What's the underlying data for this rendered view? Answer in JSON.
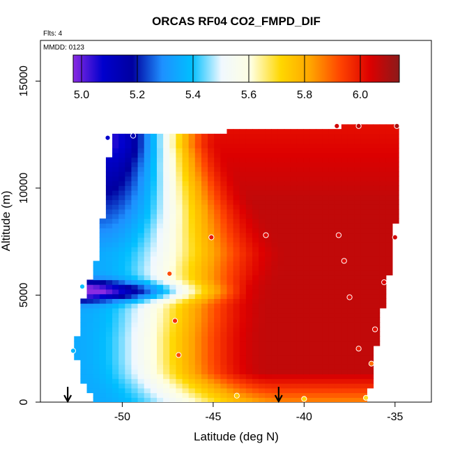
{
  "chart_data": {
    "type": "heatmap",
    "title": "ORCAS RF04 CO2_FMPD_DIF",
    "flights_label": "Flts: 4",
    "date_label": "MMDD: 0123",
    "xlabel": "Latitude (deg N)",
    "ylabel": "Altitude (m)",
    "xlim": [
      -54.5,
      -33.0
    ],
    "ylim": [
      0,
      16900
    ],
    "x_ticks": [
      -50,
      -45,
      -40,
      -35
    ],
    "x_tick_labels": [
      "-50",
      "-45",
      "-40",
      "-35"
    ],
    "y_ticks": [
      0,
      5000,
      10000,
      15000
    ],
    "y_tick_labels": [
      "0",
      "5000",
      "10000",
      "15000"
    ],
    "colorbar": {
      "min": 4.97,
      "max": 6.14,
      "ticks": [
        5.0,
        5.2,
        5.4,
        5.6,
        5.8,
        6.0
      ],
      "tick_labels": [
        "5.0",
        "5.2",
        "5.4",
        "5.6",
        "5.8",
        "6.0"
      ],
      "colors": [
        "#8A2BE2",
        "#0000CD",
        "#0000A0",
        "#1E90FF",
        "#00BFFF",
        "#F0F8FF",
        "#FFFFE0",
        "#FFD700",
        "#FFA500",
        "#FF4500",
        "#DD0000",
        "#8B1A1A"
      ]
    },
    "grid": false,
    "legend": "none",
    "field_description": "Interpolated CO2 difference field over latitude and altitude; low values (blue) in the southwest high-altitude region and a thin low layer near 5000-5500 m, high values (red) in the center to northeast between about 1000 m and 9000 m.",
    "field_edge_left": [
      [
        0,
        -51.4
      ],
      [
        600,
        -51.9
      ],
      [
        1200,
        -52.3
      ],
      [
        2000,
        -52.5
      ],
      [
        2500,
        -52.5
      ],
      [
        3000,
        -52.5
      ],
      [
        3500,
        -52.4
      ],
      [
        4000,
        -52.3
      ],
      [
        4500,
        -52.3
      ],
      [
        5000,
        -52.1
      ],
      [
        5500,
        -52.0
      ],
      [
        6000,
        -51.6
      ],
      [
        7000,
        -51.3
      ],
      [
        8000,
        -51.2
      ],
      [
        9000,
        -51.0
      ],
      [
        10000,
        -50.9
      ],
      [
        11000,
        -50.8
      ],
      [
        11900,
        -50.6
      ],
      [
        12500,
        -50.6
      ]
    ],
    "field_edge_right": [
      [
        0,
        -36.6
      ],
      [
        1000,
        -36.3
      ],
      [
        2000,
        -36.2
      ],
      [
        3000,
        -35.9
      ],
      [
        4000,
        -35.8
      ],
      [
        5000,
        -35.5
      ],
      [
        6000,
        -35.3
      ],
      [
        7000,
        -35.1
      ],
      [
        8000,
        -35.0
      ],
      [
        9000,
        -34.9
      ],
      [
        10000,
        -34.9
      ],
      [
        11000,
        -34.8
      ],
      [
        12000,
        -34.7
      ],
      [
        12900,
        -34.7
      ]
    ],
    "field_top": [
      [
        -50.6,
        12500
      ],
      [
        -48.0,
        12500
      ],
      [
        -45.5,
        12600
      ],
      [
        -43.0,
        12700
      ],
      [
        -40.0,
        12800
      ],
      [
        -37.0,
        12900
      ],
      [
        -34.7,
        12900
      ]
    ],
    "aircraft_samples": [
      {
        "lat": -50.8,
        "alt": 12350,
        "value": 5.08
      },
      {
        "lat": -49.4,
        "alt": 12450,
        "value": 5.14
      },
      {
        "lat": -38.2,
        "alt": 12900,
        "value": 6.05
      },
      {
        "lat": -37.0,
        "alt": 12900,
        "value": 6.08
      },
      {
        "lat": -34.9,
        "alt": 12900,
        "value": 6.1
      },
      {
        "lat": -45.1,
        "alt": 7700,
        "value": 6.0
      },
      {
        "lat": -42.1,
        "alt": 7800,
        "value": 6.02
      },
      {
        "lat": -38.1,
        "alt": 7800,
        "value": 6.03
      },
      {
        "lat": -35.0,
        "alt": 7700,
        "value": 6.05
      },
      {
        "lat": -37.8,
        "alt": 6600,
        "value": 6.02
      },
      {
        "lat": -47.4,
        "alt": 6000,
        "value": 5.92
      },
      {
        "lat": -35.6,
        "alt": 5600,
        "value": 6.03
      },
      {
        "lat": -52.2,
        "alt": 5400,
        "value": 5.4
      },
      {
        "lat": -37.5,
        "alt": 4900,
        "value": 6.02
      },
      {
        "lat": -47.1,
        "alt": 3800,
        "value": 5.96
      },
      {
        "lat": -36.1,
        "alt": 3400,
        "value": 6.01
      },
      {
        "lat": -52.7,
        "alt": 2400,
        "value": 5.38
      },
      {
        "lat": -37.0,
        "alt": 2500,
        "value": 5.99
      },
      {
        "lat": -46.9,
        "alt": 2200,
        "value": 5.92
      },
      {
        "lat": -36.3,
        "alt": 1800,
        "value": 5.88
      },
      {
        "lat": -43.7,
        "alt": 300,
        "value": 5.74
      },
      {
        "lat": -40.0,
        "alt": 150,
        "value": 5.72
      },
      {
        "lat": -36.6,
        "alt": 200,
        "value": 5.7
      }
    ],
    "arrow_markers": [
      {
        "lat": -53.0
      },
      {
        "lat": -41.4
      }
    ]
  }
}
